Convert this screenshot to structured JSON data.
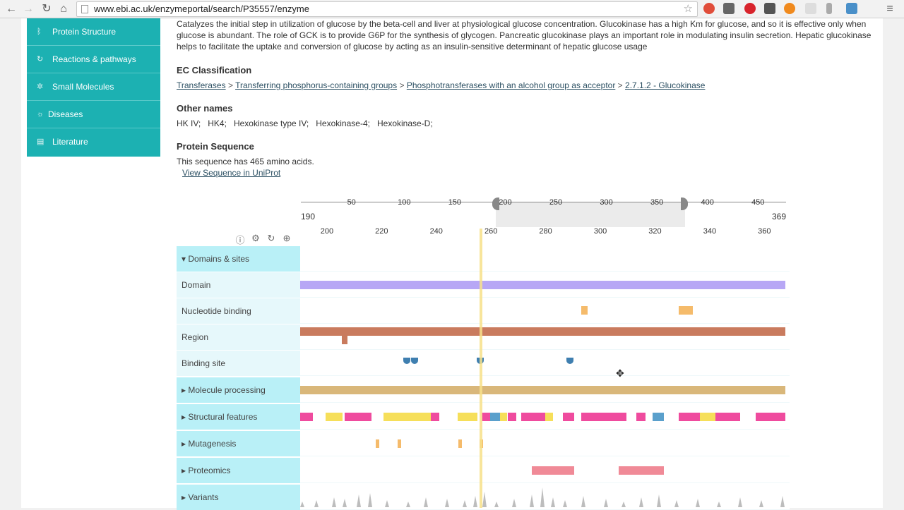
{
  "browser": {
    "url": "www.ebi.ac.uk/enzymeportal/search/P35557/enzyme"
  },
  "sidebar": {
    "items": [
      {
        "label": "Protein Structure",
        "icon": "structure-icon"
      },
      {
        "label": "Reactions & pathways",
        "icon": "reaction-icon"
      },
      {
        "label": "Small Molecules",
        "icon": "molecule-icon"
      },
      {
        "label": "Diseases",
        "icon": "disease-icon"
      },
      {
        "label": "Literature",
        "icon": "document-icon"
      }
    ]
  },
  "description": "Catalyzes the initial step in utilization of glucose by the beta-cell and liver at physiological glucose concentration. Glucokinase has a high Km for glucose, and so it is effective only when glucose is abundant. The role of GCK is to provide G6P for the synthesis of glycogen. Pancreatic glucokinase plays an important role in modulating insulin secretion. Hepatic glucokinase helps to facilitate the uptake and conversion of glucose by acting as an insulin-sensitive determinant of hepatic glucose usage",
  "ec_classification": {
    "heading": "EC Classification",
    "path": [
      "Transferases",
      "Transferring phosphorus-containing groups",
      "Phosphotransferases with an alcohol group as acceptor",
      "2.7.1.2 - Glucokinase"
    ]
  },
  "other_names": {
    "heading": "Other names",
    "names": [
      "HK IV;",
      "HK4;",
      "Hexokinase type IV;",
      "Hexokinase-4;",
      "Hexokinase-D;"
    ]
  },
  "protein_sequence": {
    "heading": "Protein Sequence",
    "text": "This sequence has 465 amino acids.",
    "link": "View Sequence in UniProt"
  },
  "viewer": {
    "overview_ticks": [
      "50",
      "100",
      "150",
      "200",
      "250",
      "300",
      "350",
      "400",
      "450"
    ],
    "range_start": "190",
    "range_end": "369",
    "zoom_ticks": [
      "200",
      "220",
      "240",
      "260",
      "280",
      "300",
      "320",
      "340",
      "360"
    ],
    "tracks": [
      {
        "label": "Domains & sites",
        "category": true,
        "expanded": true
      },
      {
        "label": "Domain",
        "category": false
      },
      {
        "label": "Nucleotide binding",
        "category": false
      },
      {
        "label": "Region",
        "category": false
      },
      {
        "label": "Binding site",
        "category": false
      },
      {
        "label": "Molecule processing",
        "category": true,
        "expanded": false
      },
      {
        "label": "Structural features",
        "category": true,
        "expanded": false
      },
      {
        "label": "Mutagenesis",
        "category": true,
        "expanded": false
      },
      {
        "label": "Proteomics",
        "category": true,
        "expanded": false
      },
      {
        "label": "Variants",
        "category": true,
        "expanded": false
      }
    ]
  },
  "colors": {
    "sidebar": "#1cb1b2",
    "domain": "#b7a7f5",
    "nucleotide": "#f5bb6b",
    "region": "#c97b5e",
    "binding": "#3f7fb0",
    "processing": "#d9b77a",
    "helix": "#ef4b9e",
    "strand": "#f6df5a",
    "turn": "#5aa0cc",
    "proteomics": "#f08a97",
    "variants": "#bdbdbd"
  }
}
